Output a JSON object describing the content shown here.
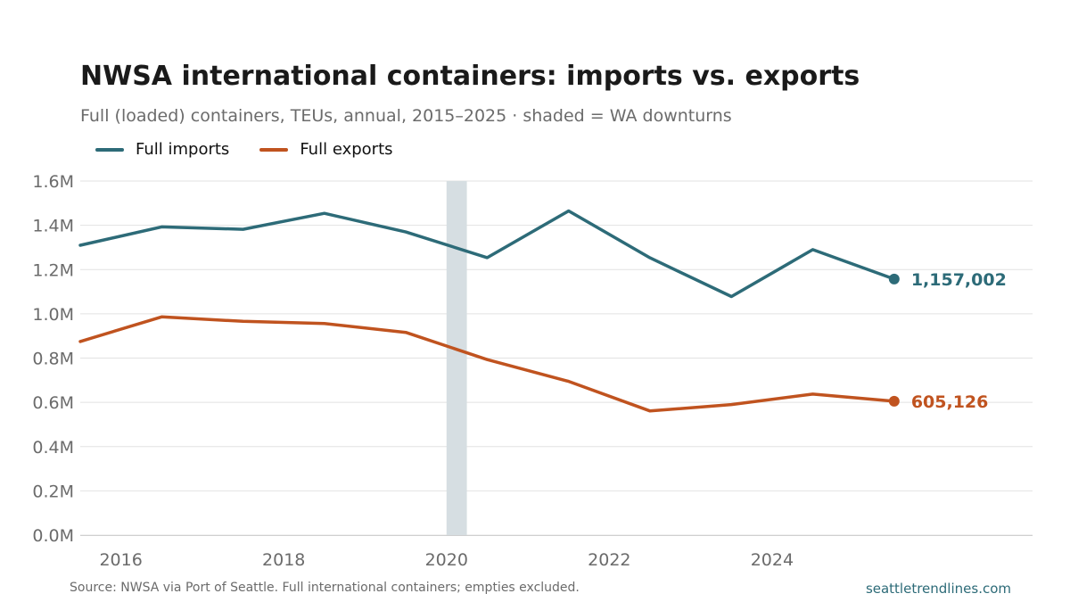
{
  "colors": {
    "imports": "#2d6b78",
    "exports": "#c0531f",
    "shade": "#d6dee2",
    "grid": "#e2e2e2"
  },
  "chart_data": {
    "type": "line",
    "title": "NWSA international containers: imports vs. exports",
    "subtitle": "Full (loaded) containers, TEUs, annual, 2015–2025 · shaded = WA downturns",
    "x": [
      2015.5,
      2016.5,
      2017.5,
      2018.5,
      2019.5,
      2020.5,
      2021.5,
      2022.5,
      2023.5,
      2024.5,
      2025.5
    ],
    "series": [
      {
        "name": "Full imports",
        "color": "#2d6b78",
        "values": [
          1310000,
          1393000,
          1382000,
          1454000,
          1370000,
          1254000,
          1465000,
          1253000,
          1078000,
          1290000,
          1157002
        ],
        "end_label": "1,157,002"
      },
      {
        "name": "Full exports",
        "color": "#c0531f",
        "values": [
          875000,
          986000,
          966000,
          956000,
          916000,
          793000,
          695000,
          561000,
          590000,
          637000,
          605126
        ],
        "end_label": "605,126"
      }
    ],
    "xlim": [
      2015.5,
      2027.2
    ],
    "ylim": [
      0,
      1600000
    ],
    "x_ticks": [
      2016,
      2018,
      2020,
      2022,
      2024
    ],
    "x_tick_labels": [
      "2016",
      "2018",
      "2020",
      "2022",
      "2024"
    ],
    "y_ticks": [
      0,
      200000,
      400000,
      600000,
      800000,
      1000000,
      1200000,
      1400000,
      1600000
    ],
    "y_tick_labels": [
      "0.0M",
      "0.2M",
      "0.4M",
      "0.6M",
      "0.8M",
      "1.0M",
      "1.2M",
      "1.4M",
      "1.6M"
    ],
    "shaded_ranges": [
      [
        2020.0,
        2020.25
      ]
    ],
    "grid": "horizontal",
    "legend_position": "top-left"
  },
  "footer": {
    "source": "Source: NWSA via Port of Seattle. Full international containers; empties excluded.",
    "site": "seattletrendlines.com"
  }
}
